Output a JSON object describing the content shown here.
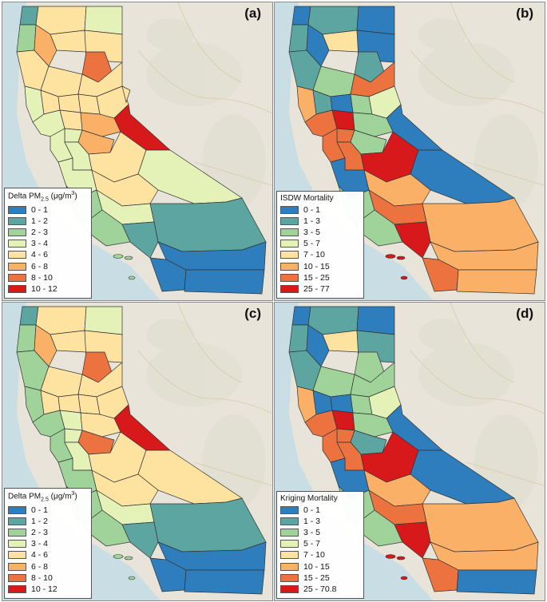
{
  "figure": {
    "panels": [
      {
        "id": "a",
        "label": "(a)",
        "legend": {
          "title_main": "Delta PM",
          "title_sub": "2.5",
          "title_pre_unit": " (μg/m",
          "title_sup": "3",
          "title_post_unit": ")",
          "items": [
            {
              "label": "0 - 1",
              "color": "#2e7ebd"
            },
            {
              "label": "1 - 2",
              "color": "#5da5a0"
            },
            {
              "label": "2 - 3",
              "color": "#9fd39a"
            },
            {
              "label": "3 - 4",
              "color": "#e4f2b8"
            },
            {
              "label": "4 - 6",
              "color": "#fde2a0"
            },
            {
              "label": "6 - 8",
              "color": "#fbb067"
            },
            {
              "label": "8 - 10",
              "color": "#ec7340"
            },
            {
              "label": "10 - 12",
              "color": "#d7191c"
            }
          ]
        }
      },
      {
        "id": "b",
        "label": "(b)",
        "legend": {
          "title_main": "ISDW Mortality",
          "items": [
            {
              "label": "0 - 1",
              "color": "#2e7ebd"
            },
            {
              "label": "1 - 3",
              "color": "#5da5a0"
            },
            {
              "label": "3 - 5",
              "color": "#9fd39a"
            },
            {
              "label": "5 - 7",
              "color": "#e4f2b8"
            },
            {
              "label": "7 - 10",
              "color": "#fde2a0"
            },
            {
              "label": "10 - 15",
              "color": "#fbb067"
            },
            {
              "label": "15 - 25",
              "color": "#ec7340"
            },
            {
              "label": "25 - 77",
              "color": "#d7191c"
            }
          ]
        }
      },
      {
        "id": "c",
        "label": "(c)",
        "legend": {
          "title_main": "Delta PM",
          "title_sub": "2.5",
          "title_pre_unit": " (μg/m",
          "title_sup": "3",
          "title_post_unit": ")",
          "items": [
            {
              "label": "0 - 1",
              "color": "#2e7ebd"
            },
            {
              "label": "1 - 2",
              "color": "#5da5a0"
            },
            {
              "label": "2 - 3",
              "color": "#9fd39a"
            },
            {
              "label": "3 - 4",
              "color": "#e4f2b8"
            },
            {
              "label": "4 - 6",
              "color": "#fde2a0"
            },
            {
              "label": "6 - 8",
              "color": "#fbb067"
            },
            {
              "label": "8 - 10",
              "color": "#ec7340"
            },
            {
              "label": "10 - 12",
              "color": "#d7191c"
            }
          ]
        }
      },
      {
        "id": "d",
        "label": "(d)",
        "legend": {
          "title_main": "Kriging Mortality",
          "items": [
            {
              "label": "0 - 1",
              "color": "#2e7ebd"
            },
            {
              "label": "1 - 3",
              "color": "#5da5a0"
            },
            {
              "label": "3 - 5",
              "color": "#9fd39a"
            },
            {
              "label": "5 - 7",
              "color": "#e4f2b8"
            },
            {
              "label": "7 - 10",
              "color": "#fde2a0"
            },
            {
              "label": "10 - 15",
              "color": "#fbb067"
            },
            {
              "label": "15 - 25",
              "color": "#ec7340"
            },
            {
              "label": "25 - 70.8",
              "color": "#d7191c"
            }
          ]
        }
      }
    ]
  }
}
